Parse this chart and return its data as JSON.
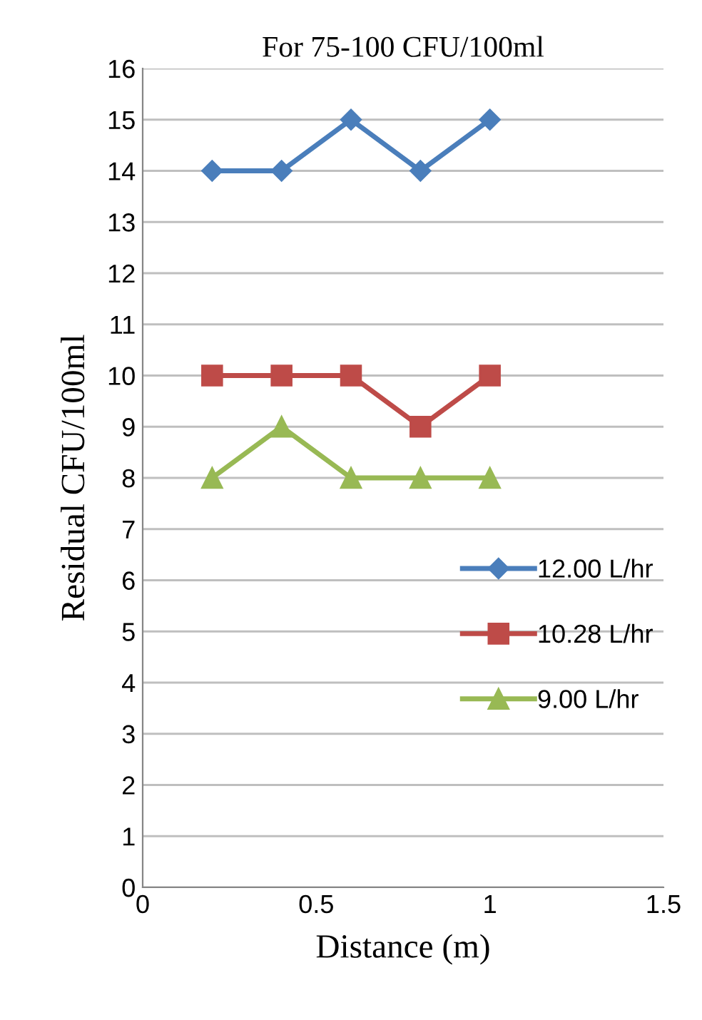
{
  "chart_data": {
    "type": "line",
    "title": "For 75-100 CFU/100ml",
    "xlabel": "Distance (m)",
    "ylabel": "Residual CFU/100ml",
    "x": [
      0.2,
      0.4,
      0.6,
      0.8,
      1.0
    ],
    "series": [
      {
        "name": "12.00 L/hr",
        "color": "#4a7ebb",
        "marker": "diamond",
        "values": [
          14,
          14,
          15,
          14,
          15
        ]
      },
      {
        "name": "10.28 L/hr",
        "color": "#be4b48",
        "marker": "square",
        "values": [
          10,
          10,
          10,
          9,
          10
        ]
      },
      {
        "name": "9.00 L/hr",
        "color": "#98b954",
        "marker": "triangle",
        "values": [
          8,
          9,
          8,
          8,
          8
        ]
      }
    ],
    "xlim": [
      0,
      1.5
    ],
    "xticks": [
      0,
      0.5,
      1,
      1.5
    ],
    "ylim": [
      0,
      16
    ],
    "yticks": [
      0,
      1,
      2,
      3,
      4,
      5,
      6,
      7,
      8,
      9,
      10,
      11,
      12,
      13,
      14,
      15,
      16
    ],
    "grid": "y",
    "legend": "bottom right",
    "line_style": "solid"
  }
}
